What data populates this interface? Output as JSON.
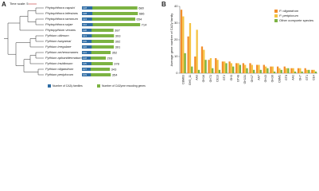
{
  "chart_data": [
    {
      "type": "hbar",
      "panel": "A",
      "time_scale_label": "Time scale: 5",
      "categories": [
        "Phytophthora capsici",
        "Phytophthora infestans",
        "Phytophthora ramorum",
        "Phytophthora sojae",
        "Phytopythium vexans",
        "Pythium ultimum",
        "Pythium iwayamai",
        "Pythium irregulare",
        "Pythium arrhenomanes",
        "Pythium aphanidermatum",
        "Pythium insidiosum",
        "Pythium oligandrum",
        "Pythium periplocum"
      ],
      "series": [
        {
          "name": "Number of CAZy families",
          "color": "#2e6ca4",
          "values": [
            128,
            128,
            124,
            132,
            118,
            121,
            119,
            120,
            114,
            108,
            115,
            107,
            109
          ]
        },
        {
          "name": "Number of CAZyme encoding genes",
          "color": "#7cb342",
          "values": [
            680,
            686,
            654,
            714,
            387,
            393,
            392,
            391,
            352,
            293,
            378,
            343,
            354
          ]
        }
      ],
      "xlim": [
        0,
        800
      ]
    },
    {
      "type": "bar",
      "panel": "B",
      "y_label": "Average gene number of CAZy family",
      "categories": [
        "CBM63",
        "GH5_11",
        "AA3",
        "GH16",
        "GH72",
        "CE13",
        "GT2",
        "GH3",
        "GT48",
        "GH131",
        "GH17",
        "AA7",
        "GH43",
        "GH30",
        "CBM1",
        "GT8",
        "AA1",
        "GH7",
        "GT1",
        "CE4"
      ],
      "series": [
        {
          "name": "P. oligandrum",
          "color": "#f28e2b",
          "values": [
            38,
            22,
            10,
            16,
            8,
            9,
            7,
            7,
            6,
            6,
            6,
            5,
            5,
            4,
            4,
            4,
            3,
            3,
            3,
            2
          ]
        },
        {
          "name": "P. periplocum",
          "color": "#f5c342",
          "values": [
            34,
            30,
            26,
            14,
            9,
            8,
            7,
            6,
            6,
            5,
            5,
            5,
            4,
            4,
            3,
            3,
            3,
            3,
            2,
            2
          ]
        },
        {
          "name": "Other oomycete species",
          "color": "#7cb342",
          "values": [
            12,
            4,
            2,
            8,
            3,
            2,
            6,
            4,
            5,
            3,
            2,
            2,
            3,
            1,
            2,
            3,
            1,
            1,
            2,
            1
          ]
        }
      ],
      "ylim": [
        0,
        40
      ],
      "yticks": [
        0,
        10,
        20,
        30,
        40
      ]
    }
  ]
}
